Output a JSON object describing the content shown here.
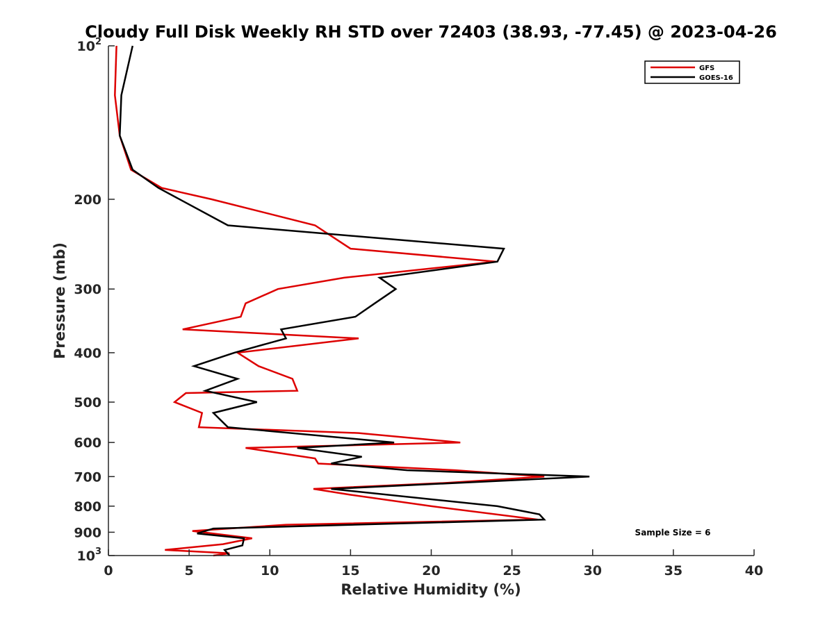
{
  "chart_data": {
    "type": "line",
    "title": "Cloudy Full Disk Weekly RH STD over 72403 (38.93, -77.45) @ 2023-04-26",
    "xlabel": "Relative Humidity (%)",
    "ylabel": "Pressure (mb)",
    "xlim": [
      0,
      40
    ],
    "ylim": [
      1000,
      100
    ],
    "y_scale": "log",
    "y_reversed": true,
    "x_ticks": [
      "0",
      "5",
      "10",
      "15",
      "20",
      "25",
      "30",
      "35",
      "40"
    ],
    "y_ticks": [
      {
        "value": 100,
        "base": "10",
        "exp": "2"
      },
      {
        "value": 200,
        "label": "200"
      },
      {
        "value": 300,
        "label": "300"
      },
      {
        "value": 400,
        "label": "400"
      },
      {
        "value": 500,
        "label": "500"
      },
      {
        "value": 600,
        "label": "600"
      },
      {
        "value": 700,
        "label": "700"
      },
      {
        "value": 800,
        "label": "800"
      },
      {
        "value": 900,
        "label": "900"
      },
      {
        "value": 1000,
        "base": "10",
        "exp": "3"
      }
    ],
    "legend_position": "top-right",
    "grid": false,
    "annotation": "Sample Size = 6",
    "series": [
      {
        "name": "GFS",
        "color": "#dd0000",
        "points": [
          [
            0.5,
            100
          ],
          [
            0.4,
            125
          ],
          [
            0.7,
            150
          ],
          [
            1.4,
            175
          ],
          [
            3.3,
            190
          ],
          [
            6.4,
            200
          ],
          [
            12.8,
            225
          ],
          [
            15.0,
            250
          ],
          [
            24.0,
            265
          ],
          [
            14.6,
            285
          ],
          [
            10.5,
            300
          ],
          [
            8.5,
            320
          ],
          [
            8.2,
            340
          ],
          [
            4.6,
            360
          ],
          [
            15.5,
            375
          ],
          [
            8.0,
            400
          ],
          [
            9.3,
            425
          ],
          [
            11.4,
            450
          ],
          [
            11.7,
            475
          ],
          [
            4.8,
            480
          ],
          [
            4.1,
            500
          ],
          [
            5.8,
            525
          ],
          [
            5.6,
            560
          ],
          [
            15.5,
            575
          ],
          [
            21.8,
            600
          ],
          [
            8.5,
            615
          ],
          [
            12.8,
            645
          ],
          [
            13.0,
            660
          ],
          [
            21.5,
            680
          ],
          [
            27.0,
            700
          ],
          [
            21.0,
            720
          ],
          [
            12.7,
            740
          ],
          [
            15.0,
            760
          ],
          [
            20.0,
            800
          ],
          [
            26.6,
            850
          ],
          [
            11.0,
            870
          ],
          [
            5.2,
            895
          ],
          [
            8.9,
            925
          ],
          [
            7.1,
            950
          ],
          [
            3.5,
            975
          ],
          [
            7.5,
            990
          ],
          [
            6.5,
            1000
          ]
        ]
      },
      {
        "name": "GOES-16",
        "color": "#000000",
        "points": [
          [
            1.5,
            100
          ],
          [
            0.8,
            125
          ],
          [
            0.7,
            150
          ],
          [
            1.5,
            175
          ],
          [
            3.1,
            190
          ],
          [
            7.4,
            225
          ],
          [
            24.5,
            250
          ],
          [
            24.1,
            265
          ],
          [
            16.8,
            285
          ],
          [
            17.8,
            300
          ],
          [
            16.5,
            320
          ],
          [
            15.3,
            340
          ],
          [
            10.7,
            360
          ],
          [
            11.0,
            375
          ],
          [
            7.8,
            400
          ],
          [
            5.3,
            425
          ],
          [
            8.0,
            450
          ],
          [
            6.0,
            475
          ],
          [
            9.2,
            500
          ],
          [
            6.5,
            525
          ],
          [
            7.4,
            560
          ],
          [
            17.7,
            600
          ],
          [
            11.7,
            615
          ],
          [
            15.7,
            640
          ],
          [
            13.8,
            660
          ],
          [
            18.5,
            680
          ],
          [
            29.8,
            700
          ],
          [
            13.8,
            740
          ],
          [
            24.1,
            800
          ],
          [
            26.7,
            830
          ],
          [
            27.0,
            850
          ],
          [
            6.5,
            885
          ],
          [
            5.5,
            905
          ],
          [
            8.4,
            925
          ],
          [
            8.3,
            955
          ],
          [
            7.2,
            975
          ],
          [
            7.5,
            1000
          ]
        ]
      }
    ]
  }
}
